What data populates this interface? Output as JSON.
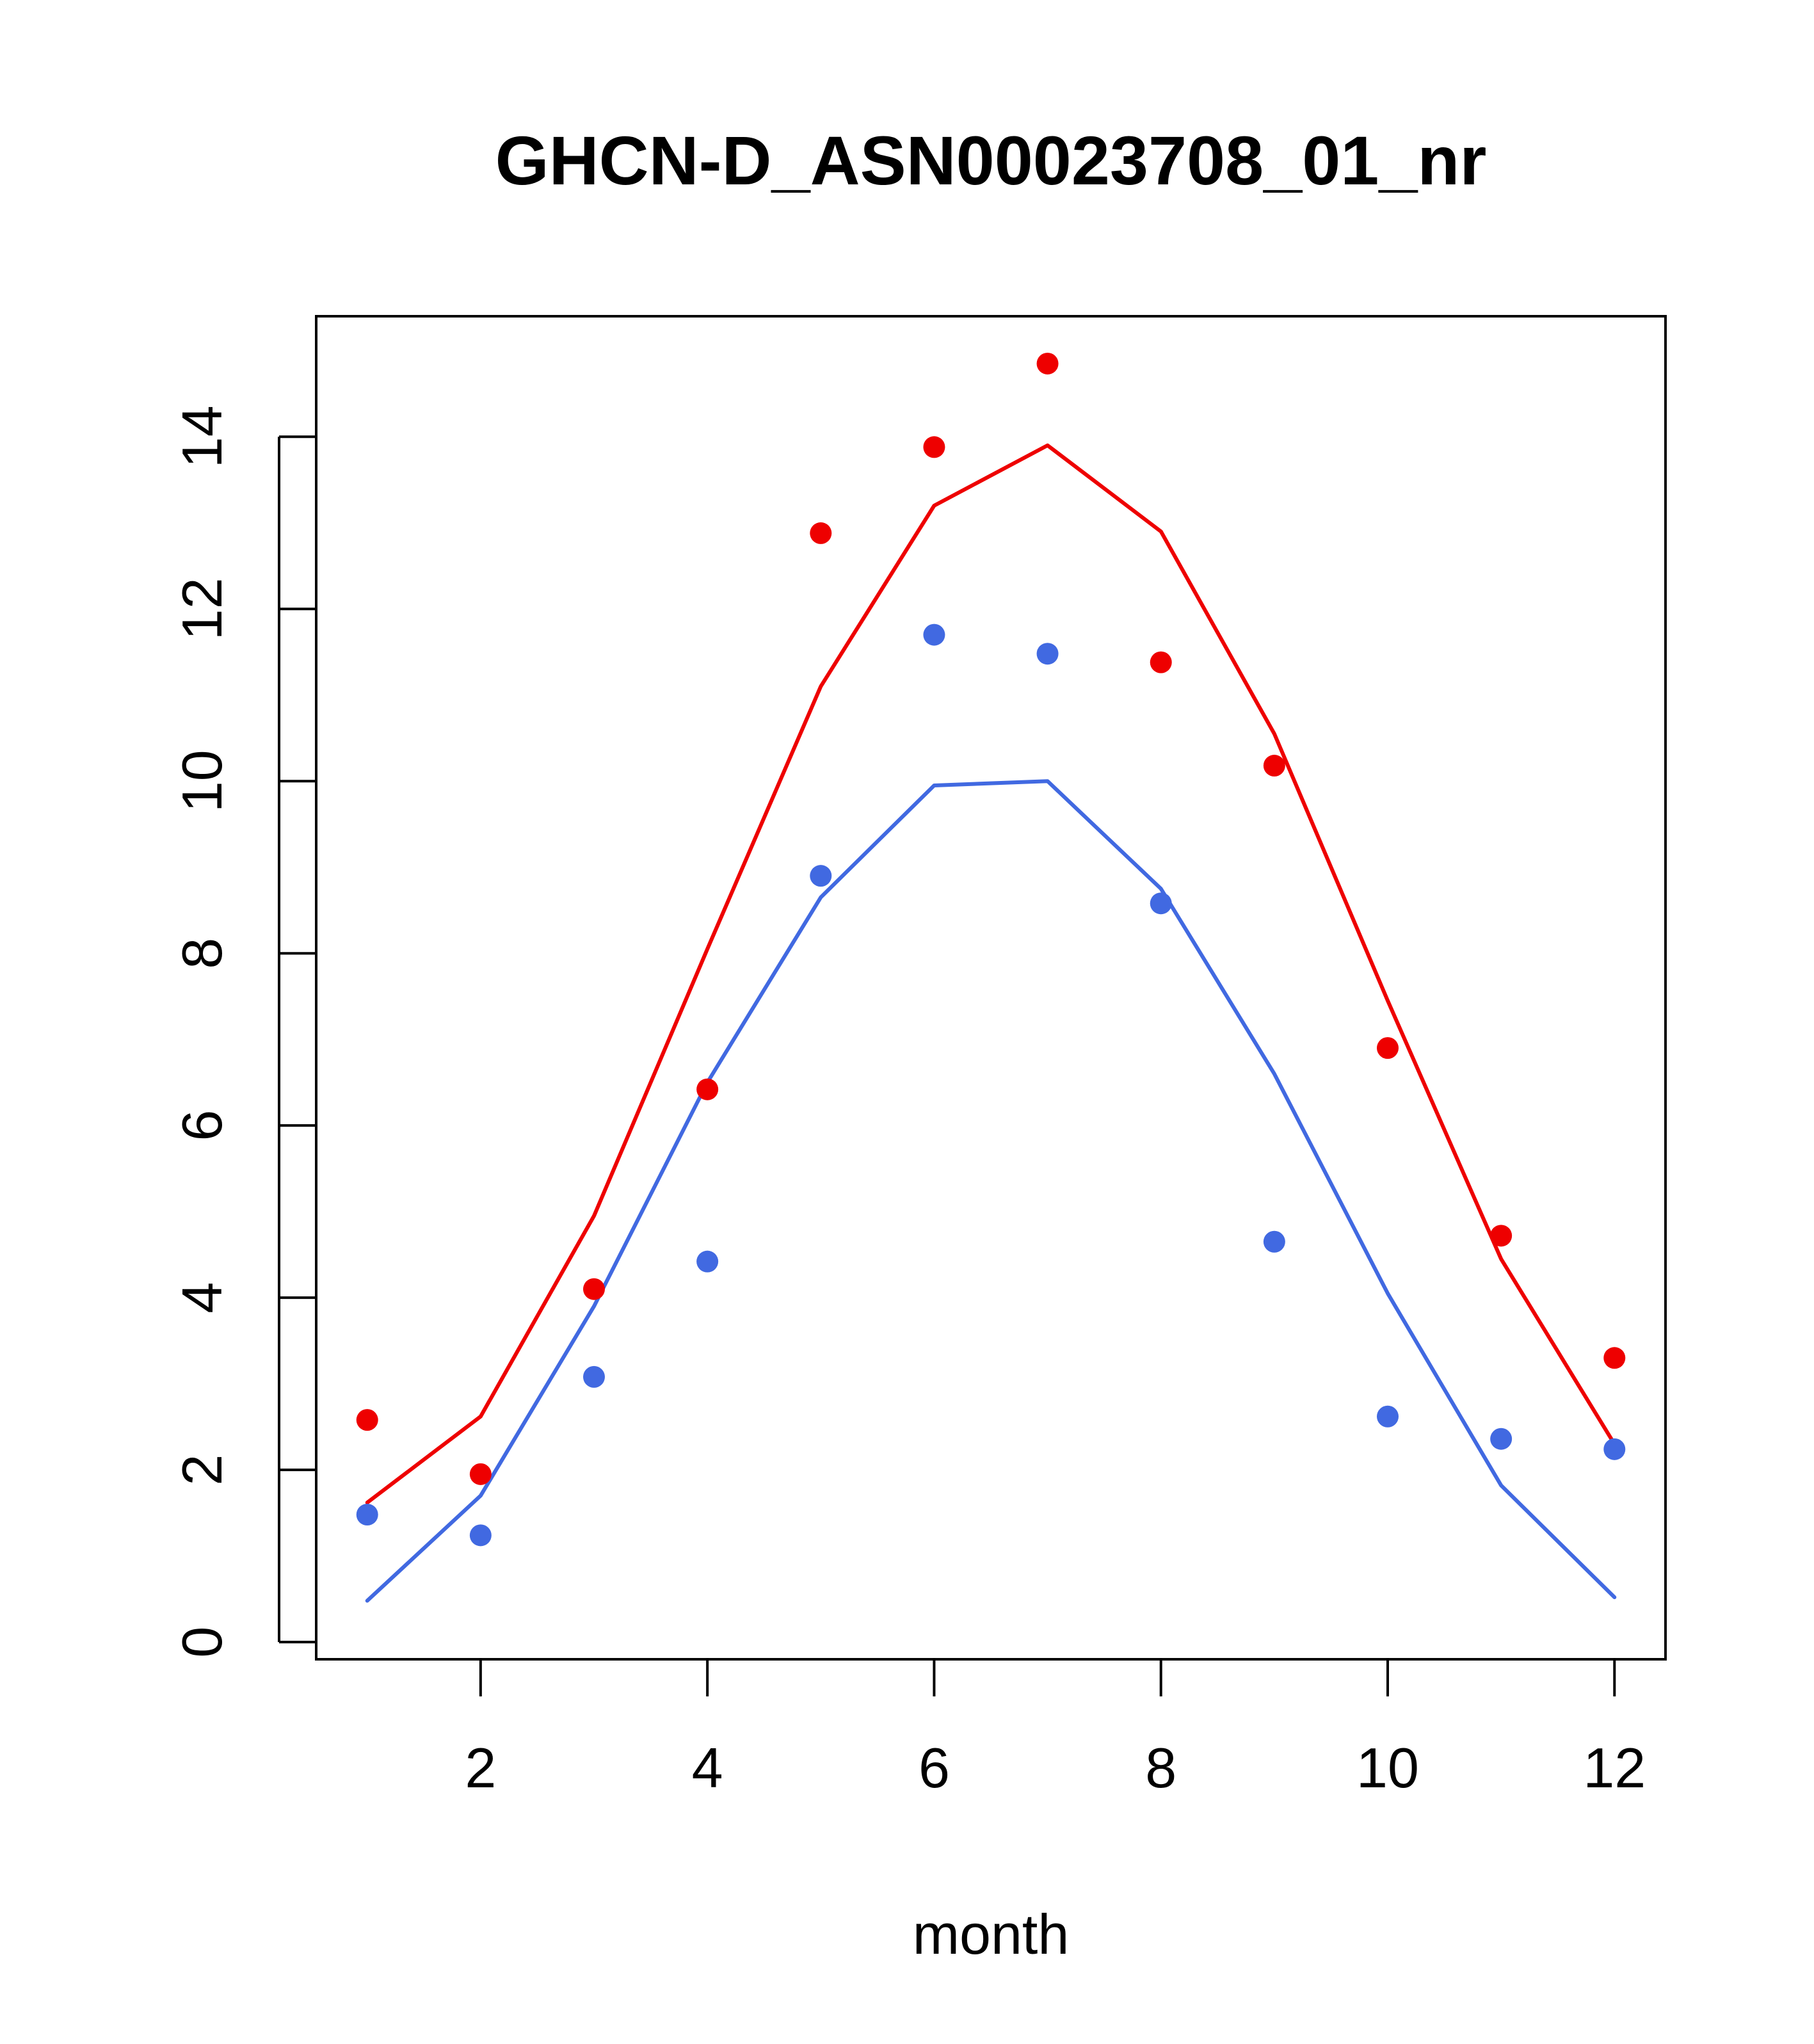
{
  "chart_data": {
    "type": "line",
    "title": "GHCN-D_ASN00023708_01_nr",
    "xlabel": "month",
    "ylabel": "",
    "xlim": [
      0.55,
      12.45
    ],
    "ylim": [
      -0.2,
      15.4
    ],
    "x_ticks": [
      2,
      4,
      6,
      8,
      10,
      12
    ],
    "y_ticks": [
      0,
      2,
      4,
      6,
      8,
      10,
      12,
      14
    ],
    "grid": false,
    "x": [
      1,
      2,
      3,
      4,
      5,
      6,
      7,
      8,
      9,
      10,
      11,
      12
    ],
    "series": [
      {
        "kind": "line",
        "color": "#ee0000",
        "values": [
          1.62,
          2.62,
          4.95,
          8.05,
          11.1,
          13.2,
          13.9,
          12.9,
          10.55,
          7.45,
          4.45,
          2.3
        ]
      },
      {
        "kind": "line",
        "color": "#4169e1",
        "values": [
          0.48,
          1.7,
          3.9,
          6.5,
          8.65,
          9.95,
          10.0,
          8.75,
          6.6,
          4.05,
          1.82,
          0.52
        ]
      },
      {
        "kind": "points",
        "color": "#ee0000",
        "values": [
          2.58,
          1.95,
          4.1,
          6.42,
          12.88,
          13.88,
          14.85,
          11.38,
          10.18,
          6.9,
          4.72,
          3.3
        ]
      },
      {
        "kind": "points",
        "color": "#4169e1",
        "values": [
          1.48,
          1.24,
          3.08,
          4.42,
          8.9,
          11.7,
          11.48,
          8.58,
          4.65,
          2.62,
          2.36,
          2.24
        ]
      }
    ]
  }
}
